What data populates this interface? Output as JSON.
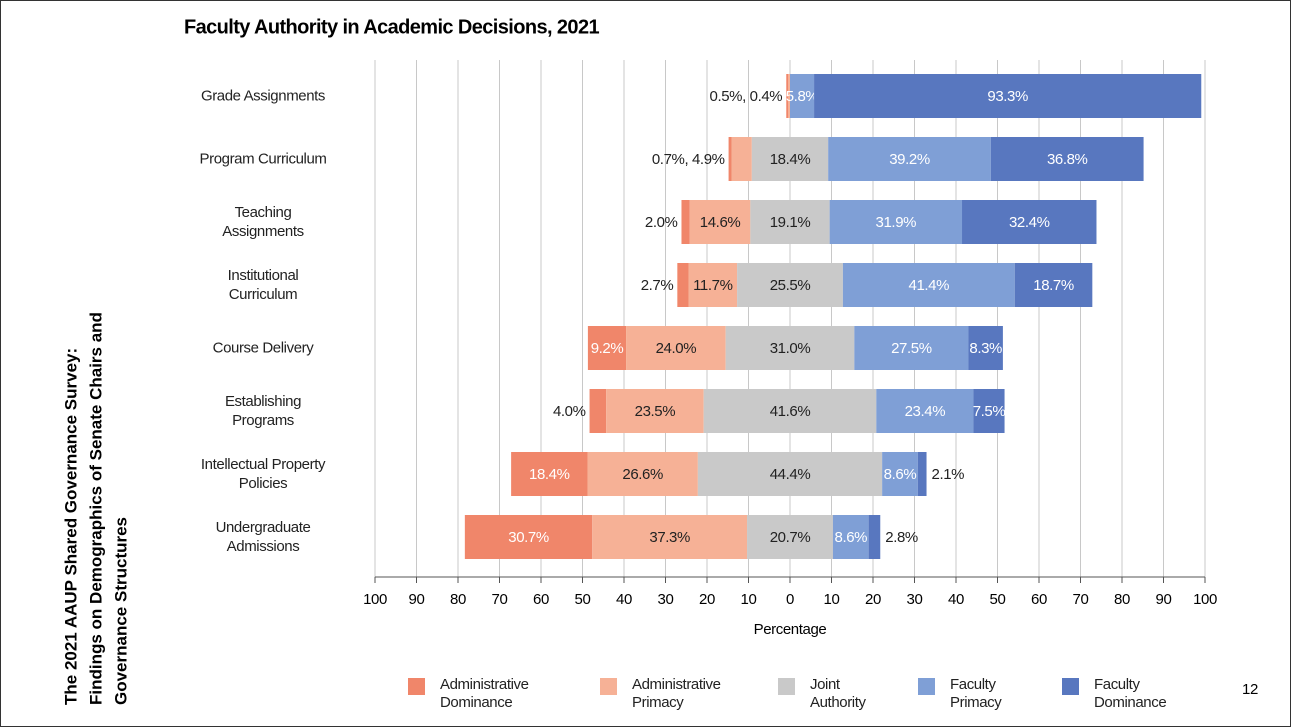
{
  "side_title": [
    "The 2021 AAUP Shared Governance Survey:",
    "Findings on Demographics of Senate Chairs and",
    "Governance Structures"
  ],
  "page_number": "12",
  "chart_data": {
    "type": "diverging-bar",
    "title": "Faculty Authority in Academic Decisions, 2021",
    "x_label": "Percentage",
    "categories": [
      "Grade Assignments",
      "Program Curriculum",
      "Teaching\nAssignments",
      "Institutional\nCurriculum",
      "Course Delivery",
      "Establishing\nPrograms",
      "Intellectual Property\nPolicies",
      "Undergraduate\nAdmissions"
    ],
    "series": [
      {
        "name": "Administrative\nDominance",
        "color": "#f0866a",
        "label_color": "#ffffff",
        "values": [
          0.5,
          0.7,
          2.0,
          2.7,
          9.2,
          4.0,
          18.4,
          30.7
        ],
        "value_labels": [
          null,
          null,
          null,
          null,
          "9.2%",
          null,
          "18.4%",
          "30.7%"
        ]
      },
      {
        "name": "Administrative\nPrimacy",
        "color": "#f6b196",
        "label_color": "#222222",
        "values": [
          0.4,
          4.9,
          14.6,
          11.7,
          24.0,
          23.5,
          26.6,
          37.3
        ],
        "value_labels": [
          null,
          null,
          "14.6%",
          "11.7%",
          "24.0%",
          "23.5%",
          "26.6%",
          "37.3%"
        ]
      },
      {
        "name": "Joint\nAuthority",
        "color": "#c9c9c9",
        "label_color": "#222222",
        "values": [
          0,
          18.4,
          19.1,
          25.5,
          31.0,
          41.6,
          44.4,
          20.7
        ],
        "value_labels": [
          null,
          "18.4%",
          "19.1%",
          "25.5%",
          "31.0%",
          "41.6%",
          "44.4%",
          "20.7%"
        ]
      },
      {
        "name": "Faculty\nPrimacy",
        "color": "#7f9fd6",
        "label_color": "#ffffff",
        "values": [
          5.8,
          39.2,
          31.9,
          41.4,
          27.5,
          23.4,
          8.6,
          8.6
        ],
        "value_labels": [
          "5.8%",
          "39.2%",
          "31.9%",
          "41.4%",
          "27.5%",
          "23.4%",
          "8.6%",
          "8.6%"
        ]
      },
      {
        "name": "Faculty\nDominance",
        "color": "#5877bf",
        "label_color": "#ffffff",
        "values": [
          93.3,
          36.8,
          32.4,
          18.7,
          8.3,
          7.5,
          2.1,
          2.8
        ],
        "value_labels": [
          "93.3%",
          "36.8%",
          "32.4%",
          "18.7%",
          "8.3%",
          "7.5%",
          null,
          null
        ]
      }
    ],
    "left_labels": [
      "0.5%, 0.4%",
      "0.7%, 4.9%",
      "2.0%",
      "2.7%",
      null,
      "4.0%",
      null,
      null
    ],
    "right_labels": [
      null,
      null,
      null,
      null,
      null,
      null,
      "2.1%",
      "2.8%"
    ],
    "xlim": [
      -100,
      100
    ],
    "xticks": [
      {
        "value": -100,
        "label": "100"
      },
      {
        "value": -90,
        "label": "90"
      },
      {
        "value": -80,
        "label": "80"
      },
      {
        "value": -70,
        "label": "70"
      },
      {
        "value": -60,
        "label": "60"
      },
      {
        "value": -50,
        "label": "50"
      },
      {
        "value": -40,
        "label": "40"
      },
      {
        "value": -30,
        "label": "30"
      },
      {
        "value": -20,
        "label": "20"
      },
      {
        "value": -10,
        "label": "10"
      },
      0,
      10,
      20,
      30,
      40,
      50,
      60,
      70,
      80,
      90,
      100
    ],
    "grid": true
  }
}
